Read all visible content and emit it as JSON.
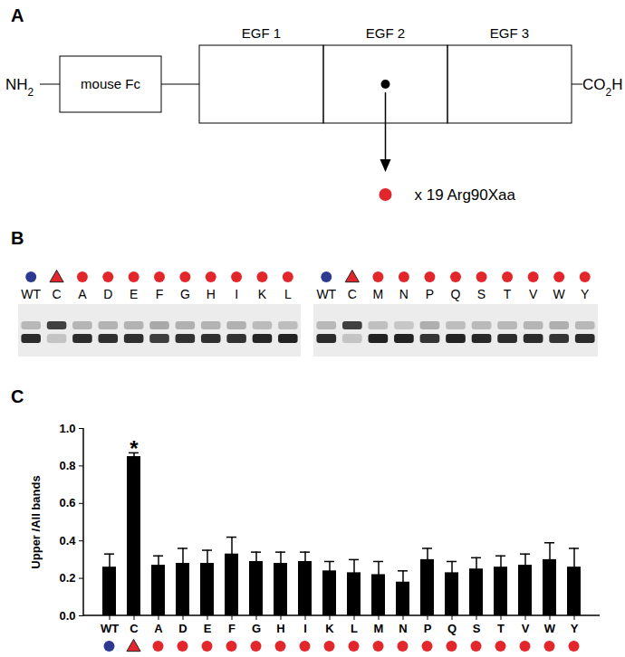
{
  "panel_a": {
    "label": "A",
    "n_terminus": "NH2",
    "c_terminus": "CO2H",
    "fc_domain": "mouse Fc",
    "egf_domains": [
      "EGF 1",
      "EGF 2",
      "EGF 3"
    ],
    "substitution": "x 19 Arg90Xaa",
    "wild_type_color": "#000000",
    "substitution_color": "#e3262b"
  },
  "panel_b": {
    "label": "B",
    "gels": [
      [
        "WT",
        "C",
        "A",
        "D",
        "E",
        "F",
        "G",
        "H",
        "I",
        "K",
        "L"
      ],
      [
        "WT",
        "C",
        "M",
        "N",
        "P",
        "Q",
        "S",
        "T",
        "V",
        "W",
        "Y"
      ]
    ],
    "symbols": [
      {
        "shape": "circle",
        "color": "#2e3a92",
        "lanes": [
          "WT"
        ]
      },
      {
        "shape": "triangle",
        "color": "#e3262b",
        "lanes": [
          "C"
        ]
      },
      {
        "shape": "circle",
        "color": "#e3262b",
        "lanes": [
          "A",
          "D",
          "E",
          "F",
          "G",
          "H",
          "I",
          "K",
          "L",
          "M",
          "N",
          "P",
          "Q",
          "S",
          "T",
          "V",
          "W",
          "Y"
        ]
      }
    ]
  },
  "chart_data": {
    "type": "bar",
    "title": "C",
    "y_label": "Upper /All bands",
    "categories": [
      "WT",
      "C",
      "A",
      "D",
      "E",
      "F",
      "G",
      "H",
      "I",
      "K",
      "L",
      "M",
      "N",
      "P",
      "Q",
      "S",
      "T",
      "V",
      "W",
      "Y"
    ],
    "values": [
      0.26,
      0.85,
      0.27,
      0.28,
      0.28,
      0.33,
      0.29,
      0.28,
      0.29,
      0.24,
      0.23,
      0.22,
      0.18,
      0.3,
      0.23,
      0.25,
      0.26,
      0.27,
      0.3,
      0.26
    ],
    "errors": [
      0.07,
      0.02,
      0.05,
      0.08,
      0.07,
      0.09,
      0.05,
      0.06,
      0.05,
      0.05,
      0.07,
      0.07,
      0.06,
      0.06,
      0.06,
      0.06,
      0.06,
      0.06,
      0.09,
      0.1
    ],
    "color": "#000000",
    "ylim": [
      0,
      1
    ],
    "yticks": [
      {
        "value": 0,
        "label": "0.0"
      },
      {
        "value": 0.2,
        "label": "0.2"
      },
      {
        "value": 0.4,
        "label": "0.4"
      },
      {
        "value": 0.6,
        "label": "0.6"
      },
      {
        "value": 0.8,
        "label": "0.8"
      },
      {
        "value": 1,
        "label": "1.0"
      }
    ],
    "grid": false,
    "annotations": [
      {
        "category": "C",
        "text": "*"
      }
    ]
  }
}
